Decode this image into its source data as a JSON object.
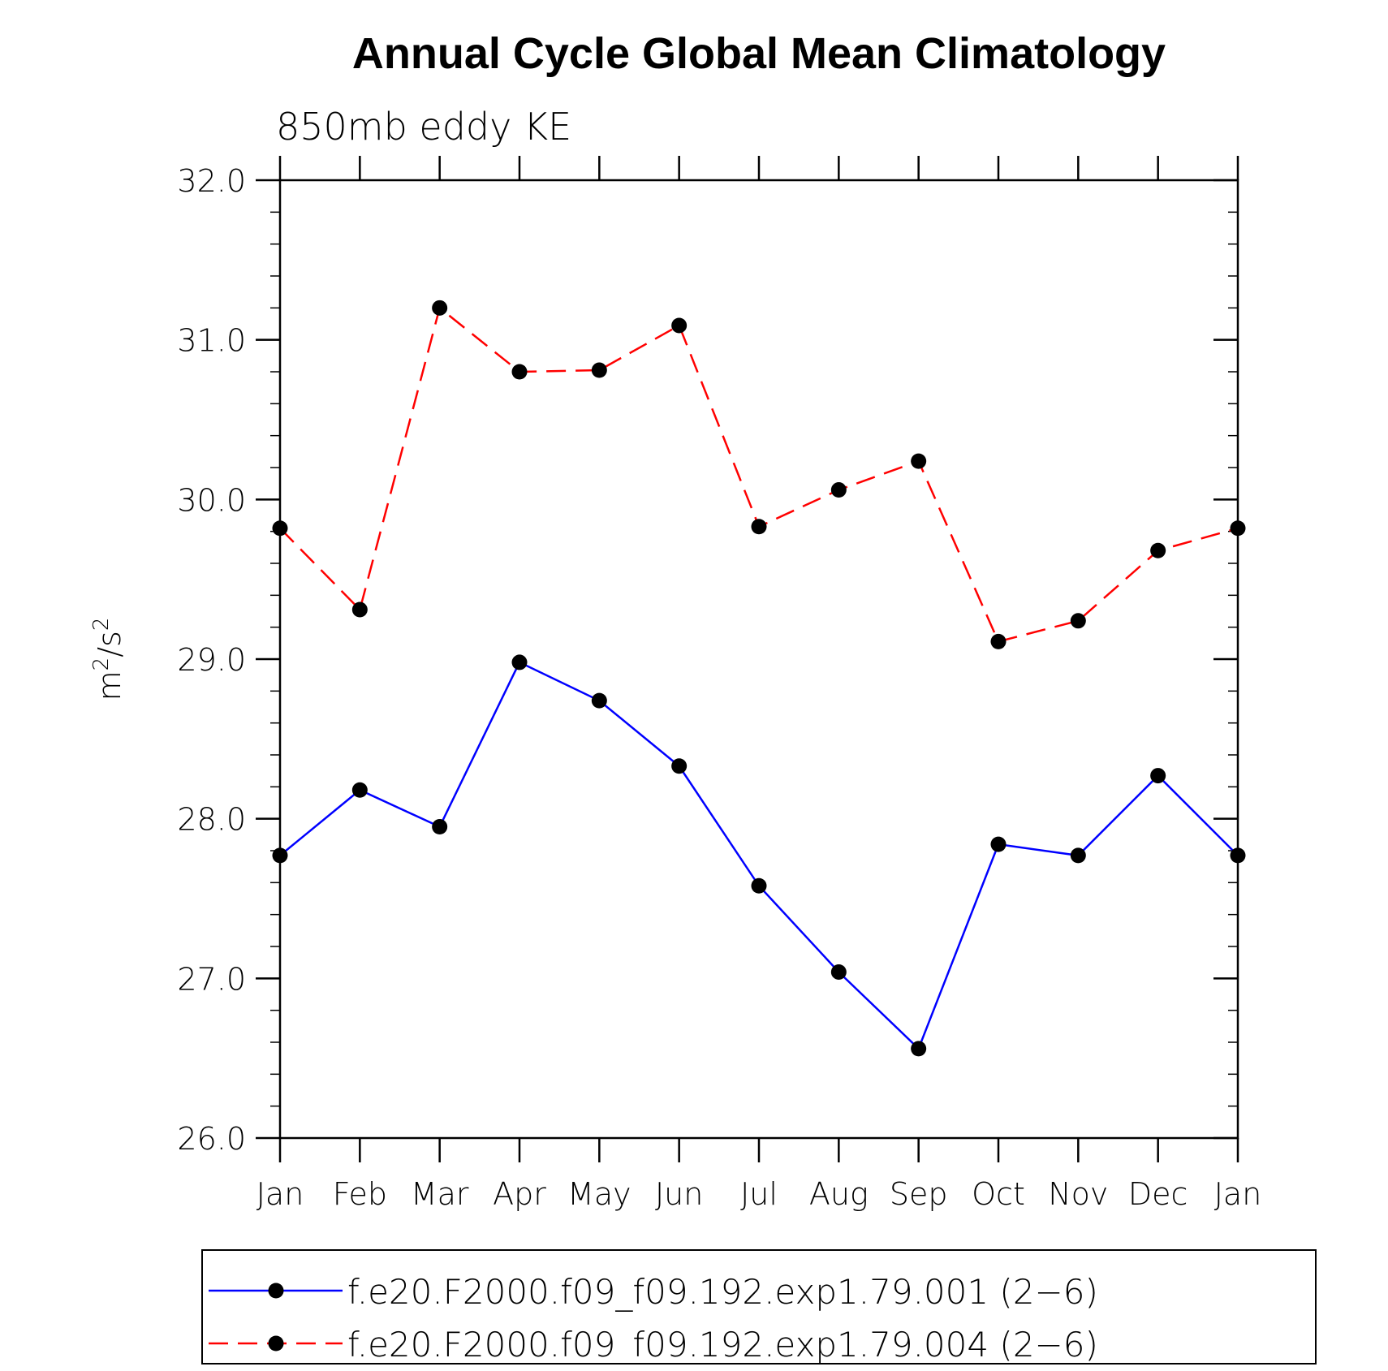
{
  "chart_data": {
    "type": "line",
    "title": "Annual Cycle Global Mean Climatology",
    "subtitle": "850mb eddy KE",
    "ylabel": "m²/s²",
    "xlabel": "",
    "categories": [
      "Jan",
      "Feb",
      "Mar",
      "Apr",
      "May",
      "Jun",
      "Jul",
      "Aug",
      "Sep",
      "Oct",
      "Nov",
      "Dec",
      "Jan"
    ],
    "ylim": [
      26.0,
      32.0
    ],
    "yticks": [
      "26.0",
      "27.0",
      "28.0",
      "29.0",
      "30.0",
      "31.0",
      "32.0"
    ],
    "grid": false,
    "legend_position": "bottom",
    "series": [
      {
        "name": "f.e20.F2000.f09_f09.192.exp1.79.001 (2−6)",
        "color": "#0000ff",
        "dash": "solid",
        "marker": "filled-circle",
        "values": [
          27.77,
          28.18,
          27.95,
          28.98,
          28.74,
          28.33,
          27.58,
          27.04,
          26.56,
          27.84,
          27.77,
          28.27,
          27.77
        ]
      },
      {
        "name": "f.e20.F2000.f09_f09.192.exp1.79.004 (2−6)",
        "color": "#ff0000",
        "dash": "dashed",
        "marker": "filled-circle",
        "values": [
          29.82,
          29.31,
          31.2,
          30.8,
          30.81,
          31.09,
          29.83,
          30.06,
          30.24,
          29.11,
          29.24,
          29.68,
          29.82
        ]
      }
    ]
  }
}
